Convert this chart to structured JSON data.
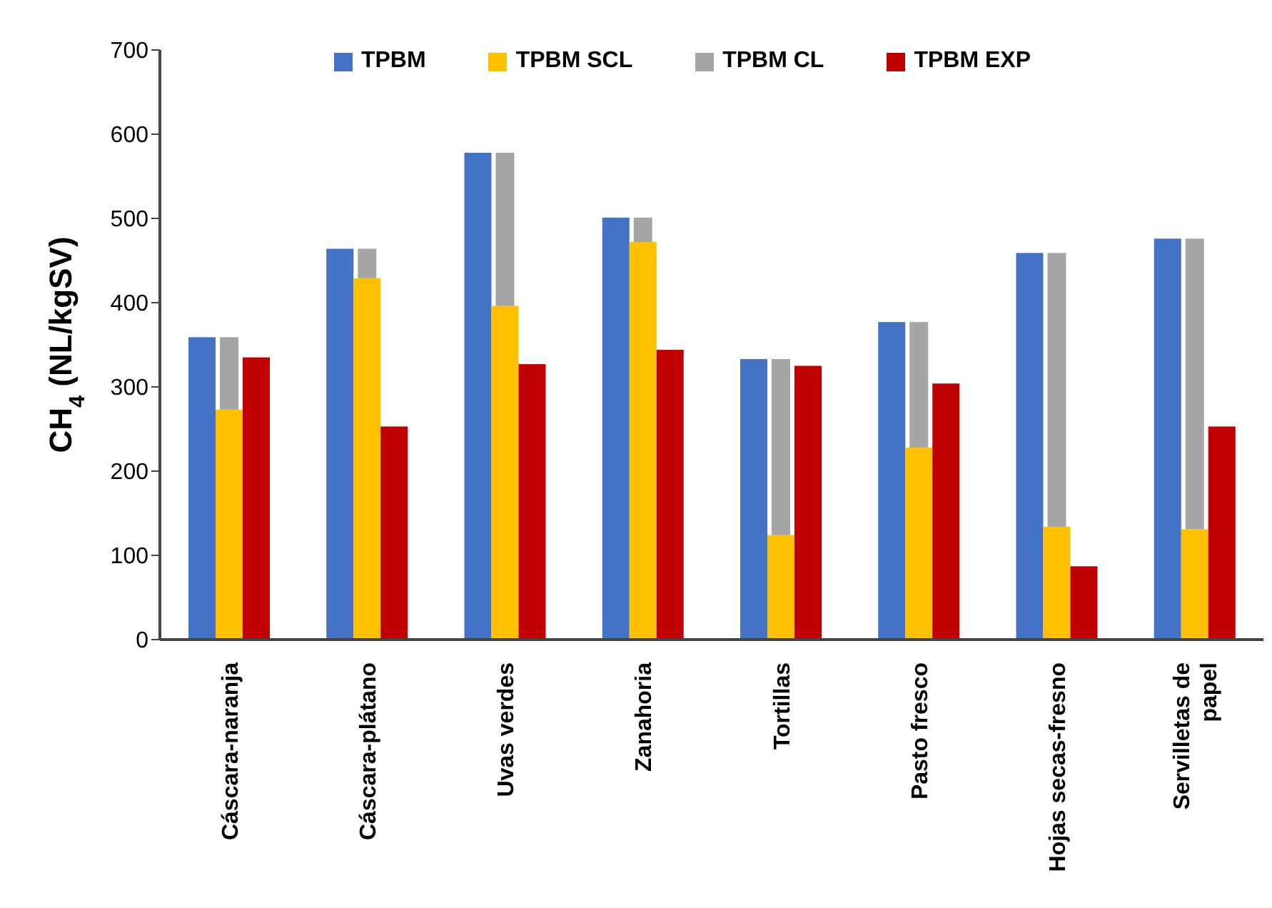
{
  "chart_data": {
    "type": "bar",
    "ylabel": "CH$_{4}$ (NL/kgSV)",
    "categories": [
      "Cáscara-naranja",
      "Cáscara-plátano",
      "Uvas verdes",
      "Zanahoria",
      "Tortillas",
      "Pasto fresco",
      "Hojas secas-fresno",
      "Servilletas de papel"
    ],
    "series": [
      {
        "name": "TPBM",
        "color": "#4472c4",
        "values": [
          359,
          464,
          578,
          501,
          333,
          377,
          459,
          476
        ]
      },
      {
        "name": "TPBM SCL",
        "color": "#ffc000",
        "values": [
          273,
          429,
          396,
          472,
          124,
          228,
          134,
          131
        ]
      },
      {
        "name": "TPBM CL",
        "color": "#a5a5a5",
        "values": [
          86,
          35,
          182,
          29,
          209,
          149,
          325,
          345
        ],
        "base": [
          273,
          429,
          396,
          472,
          124,
          228,
          134,
          131
        ]
      },
      {
        "name": "TPBM EXP",
        "color": "#c00000",
        "values": [
          335,
          253,
          327,
          344,
          325,
          304,
          87,
          253
        ]
      }
    ],
    "ylim": [
      0,
      700
    ],
    "yticks": [
      0,
      100,
      200,
      300,
      400,
      500,
      600,
      700
    ],
    "grid": false,
    "legend": "top"
  }
}
